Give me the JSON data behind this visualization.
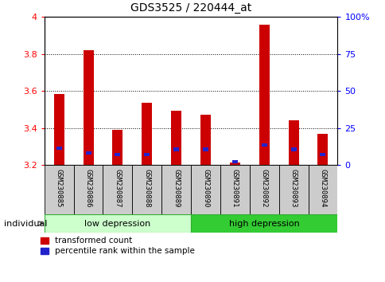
{
  "title": "GDS3525 / 220444_at",
  "samples": [
    "GSM230885",
    "GSM230886",
    "GSM230887",
    "GSM230888",
    "GSM230889",
    "GSM230890",
    "GSM230891",
    "GSM230892",
    "GSM230893",
    "GSM230894"
  ],
  "transformed_count": [
    3.585,
    3.82,
    3.39,
    3.535,
    3.495,
    3.47,
    3.215,
    3.96,
    3.44,
    3.37
  ],
  "percentile_rank_pct": [
    11.5,
    8.0,
    7.0,
    7.0,
    10.5,
    10.5,
    2.0,
    13.5,
    10.5,
    7.0
  ],
  "bar_base": 3.2,
  "red_color": "#cc0000",
  "blue_color": "#2222cc",
  "ylim_left": [
    3.2,
    4.0
  ],
  "ylim_right": [
    0,
    100
  ],
  "yticks_left": [
    3.2,
    3.4,
    3.6,
    3.8,
    4.0
  ],
  "ytick_labels_left": [
    "3.2",
    "3.4",
    "3.6",
    "3.8",
    "4"
  ],
  "yticks_right": [
    0,
    25,
    50,
    75,
    100
  ],
  "ytick_labels_right": [
    "0",
    "25",
    "50",
    "75",
    "100%"
  ],
  "groups": [
    {
      "label": "low depression",
      "n": 5,
      "color": "#ccffcc",
      "border": "#33aa33"
    },
    {
      "label": "high depression",
      "n": 5,
      "color": "#33cc33",
      "border": "#33aa33"
    }
  ],
  "legend_labels": [
    "transformed count",
    "percentile rank within the sample"
  ],
  "individual_label": "individual",
  "bar_width": 0.35,
  "box_color": "#cccccc",
  "background_color": "#ffffff"
}
